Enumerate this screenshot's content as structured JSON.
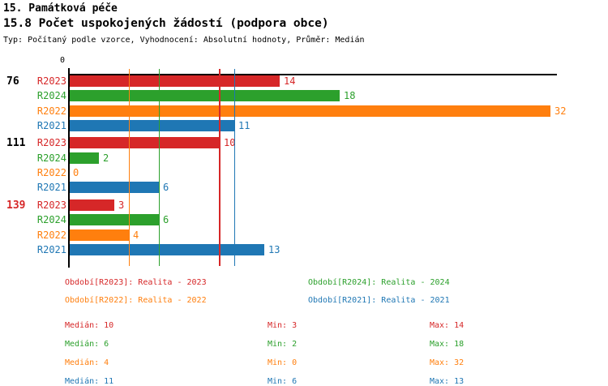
{
  "header": {
    "category": "15. Památková péče",
    "title": "15.8 Počet uspokojených žádostí (podpora obce)",
    "meta": "Typ: Počítaný podle vzorce, Vyhodnocení: Absolutní hodnoty, Průměr: Medián"
  },
  "colors": {
    "R2023": "#d62728",
    "R2024": "#2ca02c",
    "R2022": "#ff7f0e",
    "R2021": "#1f77b4",
    "axis": "#000000"
  },
  "chart_data": {
    "type": "bar",
    "orientation": "horizontal",
    "value_axis": {
      "origin_label": "0",
      "min": 0,
      "max_visible": 32,
      "grid": "median-lines-only"
    },
    "series_order": [
      "R2023",
      "R2024",
      "R2022",
      "R2021"
    ],
    "groups": [
      {
        "id": "76",
        "id_color": "#000000",
        "values": {
          "R2023": 14,
          "R2024": 18,
          "R2022": 32,
          "R2021": 11
        }
      },
      {
        "id": "111",
        "id_color": "#000000",
        "values": {
          "R2023": 10,
          "R2024": 2,
          "R2022": 0,
          "R2021": 6
        }
      },
      {
        "id": "139",
        "id_color": "#d62728",
        "values": {
          "R2023": 3,
          "R2024": 6,
          "R2022": 4,
          "R2021": 13
        }
      }
    ],
    "median_gridlines": [
      {
        "series": "R2022",
        "value": 4
      },
      {
        "series": "R2024",
        "value": 6
      },
      {
        "series": "R2023",
        "value": 10
      },
      {
        "series": "R2021",
        "value": 11
      }
    ]
  },
  "legend": [
    {
      "series": "R2023",
      "label": "Období[R2023]: Realita - 2023",
      "col": 0,
      "row": 0
    },
    {
      "series": "R2024",
      "label": "Období[R2024]: Realita - 2024",
      "col": 1,
      "row": 0
    },
    {
      "series": "R2022",
      "label": "Období[R2022]: Realita - 2022",
      "col": 0,
      "row": 1
    },
    {
      "series": "R2021",
      "label": "Období[R2021]: Realita - 2021",
      "col": 1,
      "row": 1
    }
  ],
  "stats": [
    {
      "series": "R2023",
      "median": "Medián: 10",
      "min": "Min: 3",
      "max": "Max: 14"
    },
    {
      "series": "R2024",
      "median": "Medián: 6",
      "min": "Min: 2",
      "max": "Max: 18"
    },
    {
      "series": "R2022",
      "median": "Medián: 4",
      "min": "Min: 0",
      "max": "Max: 32"
    },
    {
      "series": "R2021",
      "median": "Medián: 11",
      "min": "Min: 6",
      "max": "Max: 13"
    }
  ]
}
